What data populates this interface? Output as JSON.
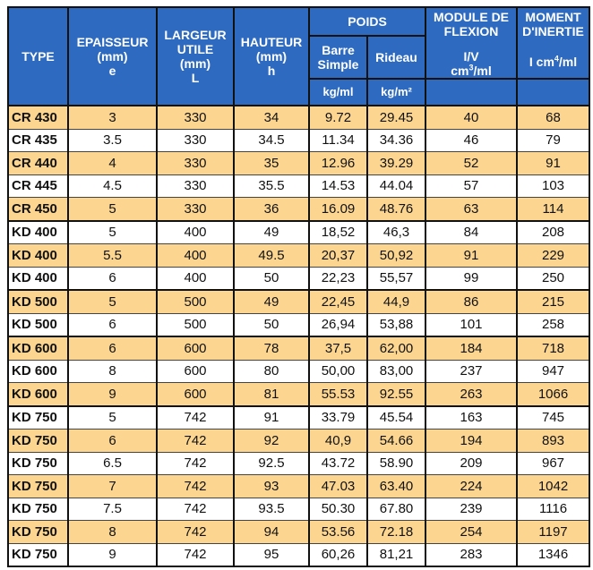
{
  "header": {
    "type": "TYPE",
    "epaisseur": [
      "EPAISSEUR",
      "(mm)",
      "e"
    ],
    "largeur": [
      "LARGEUR",
      "UTILE",
      "(mm)",
      "L"
    ],
    "hauteur": [
      "HAUTEUR",
      "(mm)",
      "h"
    ],
    "poids": "POIDS",
    "barre": [
      "Barre",
      "Simple"
    ],
    "rideau": "Rideau",
    "kgml": "kg/ml",
    "kgm2": "kg/m²",
    "module": [
      "MODULE DE",
      "FLEXION"
    ],
    "moment": [
      "MOMENT",
      "D'INERTIE"
    ],
    "iv": "I/V",
    "iv_unit_base": "cm",
    "iv_unit_exp": "3",
    "iv_unit_tail": "/ml",
    "inertia_base": "I cm",
    "inertia_exp": "4",
    "inertia_tail": "/ml"
  },
  "rows": [
    {
      "type": "CR 430",
      "e": "3",
      "l": "330",
      "h": "34",
      "barre": "9.72",
      "rideau": "29.45",
      "module": "40",
      "moment": "68"
    },
    {
      "type": "CR 435",
      "e": "3.5",
      "l": "330",
      "h": "34.5",
      "barre": "11.34",
      "rideau": "34.36",
      "module": "46",
      "moment": "79"
    },
    {
      "type": "CR 440",
      "e": "4",
      "l": "330",
      "h": "35",
      "barre": "12.96",
      "rideau": "39.29",
      "module": "52",
      "moment": "91"
    },
    {
      "type": "CR 445",
      "e": "4.5",
      "l": "330",
      "h": "35.5",
      "barre": "14.53",
      "rideau": "44.04",
      "module": "57",
      "moment": "103"
    },
    {
      "type": "CR 450",
      "e": "5",
      "l": "330",
      "h": "36",
      "barre": "16.09",
      "rideau": "48.76",
      "module": "63",
      "moment": "114"
    },
    {
      "type": "KD 400",
      "e": "5",
      "l": "400",
      "h": "49",
      "barre": "18,52",
      "rideau": "46,3",
      "module": "84",
      "moment": "208"
    },
    {
      "type": "KD 400",
      "e": "5.5",
      "l": "400",
      "h": "49.5",
      "barre": "20,37",
      "rideau": "50,92",
      "module": "91",
      "moment": "229"
    },
    {
      "type": "KD 400",
      "e": "6",
      "l": "400",
      "h": "50",
      "barre": "22,23",
      "rideau": "55,57",
      "module": "99",
      "moment": "250"
    },
    {
      "type": "KD 500",
      "e": "5",
      "l": "500",
      "h": "49",
      "barre": "22,45",
      "rideau": "44,9",
      "module": "86",
      "moment": "215"
    },
    {
      "type": "KD 500",
      "e": "6",
      "l": "500",
      "h": "50",
      "barre": "26,94",
      "rideau": "53,88",
      "module": "101",
      "moment": "258"
    },
    {
      "type": "KD 600",
      "e": "6",
      "l": "600",
      "h": "78",
      "barre": "37,5",
      "rideau": "62,00",
      "module": "184",
      "moment": "718"
    },
    {
      "type": "KD 600",
      "e": "8",
      "l": "600",
      "h": "80",
      "barre": "50,00",
      "rideau": "83,00",
      "module": "237",
      "moment": "947"
    },
    {
      "type": "KD 600",
      "e": "9",
      "l": "600",
      "h": "81",
      "barre": "55.53",
      "rideau": "92.55",
      "module": "263",
      "moment": "1066"
    },
    {
      "type": "KD 750",
      "e": "5",
      "l": "742",
      "h": "91",
      "barre": "33.79",
      "rideau": "45.54",
      "module": "163",
      "moment": "745"
    },
    {
      "type": "KD 750",
      "e": "6",
      "l": "742",
      "h": "92",
      "barre": "40,9",
      "rideau": "54.66",
      "module": "194",
      "moment": "893"
    },
    {
      "type": "KD 750",
      "e": "6.5",
      "l": "742",
      "h": "92.5",
      "barre": "43.72",
      "rideau": "58.90",
      "module": "209",
      "moment": "967"
    },
    {
      "type": "KD 750",
      "e": "7",
      "l": "742",
      "h": "93",
      "barre": "47.03",
      "rideau": "63.40",
      "module": "224",
      "moment": "1042"
    },
    {
      "type": "KD 750",
      "e": "7.5",
      "l": "742",
      "h": "93.5",
      "barre": "50.30",
      "rideau": "67.80",
      "module": "239",
      "moment": "1116"
    },
    {
      "type": "KD 750",
      "e": "8",
      "l": "742",
      "h": "94",
      "barre": "53.56",
      "rideau": "72.18",
      "module": "254",
      "moment": "1197"
    },
    {
      "type": "KD 750",
      "e": "9",
      "l": "742",
      "h": "95",
      "barre": "60,26",
      "rideau": "81,21",
      "module": "283",
      "moment": "1346"
    }
  ]
}
